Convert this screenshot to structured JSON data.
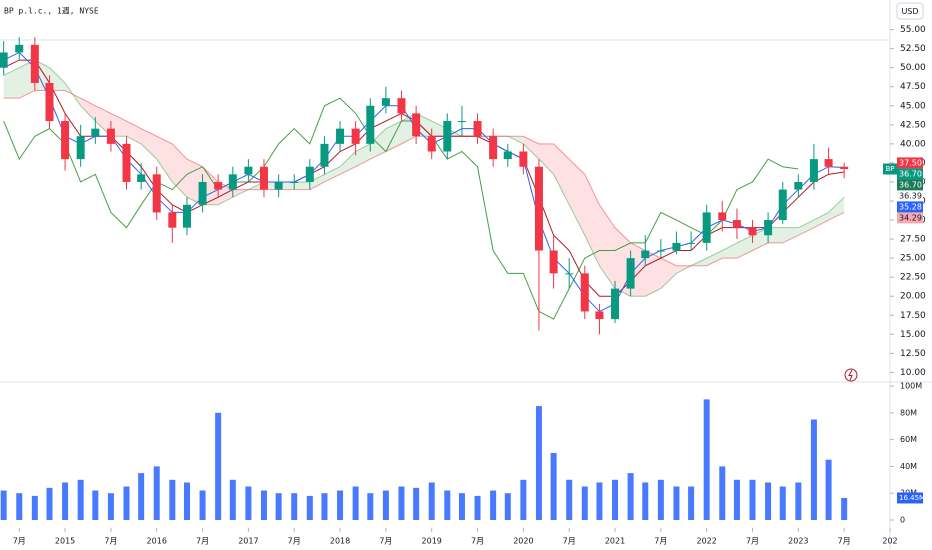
{
  "header": {
    "title": "BP p.l.c., 1週, NYSE",
    "currency": "USD",
    "symbol": "BP"
  },
  "chart_data": [
    {
      "type": "candlestick",
      "x": [
        2014.33,
        2014.5,
        2014.67,
        2014.83,
        2015,
        2015.17,
        2015.33,
        2015.5,
        2015.67,
        2015.83,
        2016,
        2016.17,
        2016.33,
        2016.5,
        2016.67,
        2016.83,
        2017,
        2017.17,
        2017.33,
        2017.5,
        2017.67,
        2017.83,
        2018,
        2018.17,
        2018.33,
        2018.5,
        2018.67,
        2018.83,
        2019,
        2019.17,
        2019.33,
        2019.5,
        2019.67,
        2019.83,
        2020,
        2020.17,
        2020.33,
        2020.5,
        2020.67,
        2020.83,
        2021,
        2021.17,
        2021.33,
        2021.5,
        2021.67,
        2021.83,
        2022,
        2022.17,
        2022.33,
        2022.5,
        2022.67,
        2022.83,
        2023,
        2023.17,
        2023.33,
        2023.5
      ],
      "open": [
        50,
        52,
        53,
        48,
        43,
        38,
        41,
        42,
        40,
        35,
        36,
        31,
        29,
        32,
        35,
        34,
        36,
        37,
        34,
        35,
        35,
        37,
        40,
        42,
        40,
        45,
        46,
        44,
        41,
        39,
        43,
        43,
        41,
        38,
        39,
        37,
        26,
        23,
        23,
        18,
        17,
        21,
        25,
        26,
        26,
        27,
        27,
        31,
        30,
        29,
        28,
        30,
        34,
        35,
        38,
        37
      ],
      "high": [
        53.5,
        54,
        54,
        49,
        44,
        42.5,
        43.5,
        43,
        41,
        37.5,
        37,
        32,
        33,
        36,
        36,
        37,
        38,
        38,
        36,
        36,
        38,
        41,
        43,
        43,
        46,
        47.5,
        47,
        45,
        42,
        44,
        45,
        44,
        42,
        40,
        40,
        38,
        28,
        25,
        24,
        19,
        22,
        26,
        28,
        27.5,
        28.5,
        28.5,
        32,
        32.5,
        31.5,
        30,
        31,
        35,
        36,
        40,
        39.5,
        37.5
      ],
      "low": [
        49,
        51,
        47,
        42,
        36.5,
        37,
        40,
        39,
        34,
        34,
        30,
        27,
        28,
        31,
        33,
        33,
        35,
        33,
        33,
        34,
        34,
        36,
        39,
        38.5,
        39,
        44,
        43,
        40,
        38,
        38,
        41,
        40,
        37,
        37,
        36,
        15.5,
        21,
        21,
        17,
        15,
        16.5,
        20,
        24,
        25,
        25.5,
        26,
        26,
        28.5,
        27.5,
        27,
        27,
        29.5,
        33,
        34,
        36,
        35.5
      ],
      "close": [
        52,
        53,
        48,
        43,
        38,
        41,
        42,
        40,
        35,
        36,
        31,
        29,
        32,
        35,
        34,
        36,
        37,
        34,
        35,
        35,
        37,
        40,
        42,
        40,
        45,
        46,
        44,
        41,
        39,
        43,
        43,
        41,
        38,
        39,
        37,
        26,
        23,
        23,
        18,
        17,
        21,
        25,
        26,
        26,
        27,
        27,
        31,
        30,
        29,
        28,
        30,
        34,
        35,
        38,
        37,
        36.7
      ],
      "conversion": [
        51,
        52,
        50,
        46,
        41,
        40,
        41,
        41,
        38,
        36,
        33,
        31,
        31,
        33,
        34,
        35,
        36,
        35,
        35,
        35,
        36,
        38,
        41,
        41,
        43,
        45,
        45,
        42,
        40,
        41,
        42,
        42,
        40,
        39,
        38,
        30,
        25,
        23,
        20,
        18,
        19,
        23,
        25,
        26,
        26.5,
        27,
        29,
        30,
        29.5,
        28.5,
        29,
        32,
        34,
        36,
        37,
        36.9
      ],
      "base": [
        50,
        51,
        51,
        48,
        44,
        41,
        41,
        41,
        39,
        37,
        34,
        32,
        31,
        32,
        33,
        34,
        35,
        35,
        35,
        35,
        36,
        37,
        39,
        40,
        42,
        43,
        44,
        43,
        41,
        41,
        41,
        41,
        40,
        39,
        38,
        33,
        28,
        26,
        22,
        20,
        20,
        22,
        24,
        25,
        26,
        26,
        28,
        29,
        29,
        29,
        29,
        31,
        33,
        35,
        36,
        36.3
      ],
      "span_a": [
        49,
        50,
        51,
        50,
        48,
        45,
        43,
        41,
        41,
        40,
        38,
        35,
        33,
        32,
        32,
        33,
        34,
        35,
        35,
        35,
        35,
        36,
        37,
        39,
        40,
        42,
        43,
        44,
        43,
        42,
        41,
        41,
        41,
        41,
        40,
        38,
        36,
        32,
        28,
        24,
        21,
        20,
        20,
        21,
        23,
        24,
        25,
        26,
        27,
        28,
        29,
        29,
        29,
        30,
        31,
        33
      ],
      "span_b": [
        46,
        46,
        47,
        47,
        47,
        46,
        45,
        44,
        43,
        42,
        41,
        40,
        38,
        37,
        35,
        34,
        34,
        34,
        34,
        34,
        34,
        35,
        36,
        37,
        38,
        39,
        40,
        41,
        41,
        41,
        41,
        41,
        41,
        41,
        41,
        40,
        40,
        38,
        36,
        32,
        29,
        27,
        26,
        25,
        24,
        24,
        24,
        25,
        25,
        26,
        27,
        27,
        28,
        29,
        30,
        31
      ],
      "up_color": "#089981",
      "down_color": "#f23645",
      "conversion_color": "#2962ff",
      "base_color": "#b2182b",
      "lagging_color": "#43a047",
      "cloud_up_color": "#43a047",
      "cloud_down_color": "#f23645",
      "xlim": [
        2014.29,
        2024.0
      ],
      "xticks": [
        {
          "value": 2014.5,
          "label": "7月"
        },
        2015,
        {
          "value": 2015.5,
          "label": "7月"
        },
        2016,
        {
          "value": 2016.5,
          "label": "7月"
        },
        2017,
        {
          "value": 2017.5,
          "label": "7月"
        },
        2018,
        {
          "value": 2018.5,
          "label": "7月"
        },
        2019,
        {
          "value": 2019.5,
          "label": "7月"
        },
        2020,
        {
          "value": 2020.5,
          "label": "7月"
        },
        2021,
        {
          "value": 2021.5,
          "label": "7月"
        },
        2022,
        {
          "value": 2022.5,
          "label": "7月"
        },
        2023,
        {
          "value": 2023.5,
          "label": "7月"
        },
        {
          "value": 2024,
          "label": "202"
        }
      ],
      "ylim": [
        9,
        56
      ],
      "yticks": [
        {
          "value": 10,
          "label": "10.00"
        },
        {
          "value": 12.5,
          "label": "12.50"
        },
        {
          "value": 15,
          "label": "15.00"
        },
        {
          "value": 17.5,
          "label": "17.50"
        },
        {
          "value": 20,
          "label": "20.00"
        },
        {
          "value": 22.5,
          "label": "22.50"
        },
        {
          "value": 25,
          "label": "25.00"
        },
        {
          "value": 27.5,
          "label": "27.50"
        },
        {
          "value": 30,
          "label": "30.00"
        },
        {
          "value": 32.5,
          "label": "32.50"
        },
        {
          "value": 35,
          "label": "35.00"
        },
        {
          "value": 37.5,
          "label": "37.50"
        },
        {
          "value": 40,
          "label": "40.00"
        },
        {
          "value": 42.5,
          "label": "42.50"
        },
        {
          "value": 45,
          "label": "45.00"
        },
        {
          "value": 47.5,
          "label": "47.50"
        },
        {
          "value": 50,
          "label": "50.00"
        },
        {
          "value": 52.5,
          "label": "52.50"
        },
        {
          "value": 55,
          "label": "55.00"
        }
      ],
      "markers": [
        {
          "value": 37.5,
          "label": "37.50",
          "color": "#f23645"
        },
        {
          "value": 36.7,
          "label": "36.70",
          "color": "#089981"
        },
        {
          "value": 36.7,
          "label": "36.70",
          "color": "#1b7a5a"
        },
        {
          "value": 36.39,
          "label": "36.39",
          "color": "#ffffff"
        },
        {
          "value": 35.28,
          "label": "35.28",
          "color": "#2962ff"
        },
        {
          "value": 34.29,
          "label": "34.29",
          "color": "#f7a9b0"
        }
      ]
    },
    {
      "type": "bar",
      "values": [
        22,
        20,
        18,
        24,
        28,
        30,
        22,
        20,
        25,
        35,
        40,
        30,
        28,
        22,
        80,
        30,
        25,
        22,
        20,
        20,
        18,
        20,
        22,
        25,
        20,
        22,
        25,
        24,
        28,
        22,
        20,
        18,
        22,
        20,
        30,
        85,
        50,
        30,
        25,
        28,
        30,
        35,
        28,
        30,
        25,
        25,
        90,
        40,
        30,
        30,
        28,
        25,
        28,
        75,
        45,
        16.45
      ],
      "value_labels": [
        null,
        null,
        null,
        null,
        null,
        null,
        null,
        null,
        null,
        null,
        null,
        null,
        null,
        null,
        null,
        null,
        null,
        null,
        null,
        null,
        null,
        null,
        null,
        null,
        null,
        null,
        null,
        null,
        null,
        null,
        null,
        null,
        null,
        null,
        null,
        null,
        null,
        null,
        null,
        null,
        null,
        null,
        null,
        null,
        null,
        null,
        null,
        null,
        null,
        null,
        null,
        null,
        null,
        null,
        null,
        "16.45M"
      ],
      "color": "#2962ff",
      "ylim": [
        0,
        100
      ],
      "yticks": [
        0,
        {
          "value": 20,
          "label": "20M"
        },
        {
          "value": 40,
          "label": "40M"
        },
        {
          "value": 60,
          "label": "60M"
        },
        {
          "value": 80,
          "label": "80M"
        },
        {
          "value": 100,
          "label": "100M"
        }
      ]
    }
  ]
}
